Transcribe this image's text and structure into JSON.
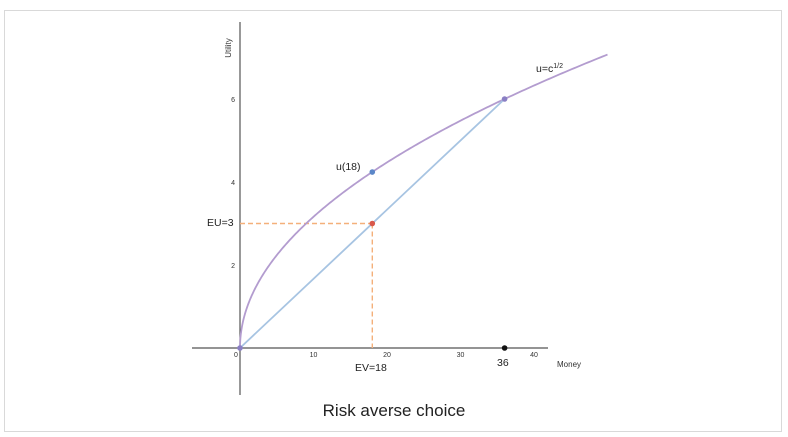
{
  "caption": "Risk averse choice",
  "chart_data": {
    "type": "line",
    "title": "",
    "xlabel": "Money",
    "ylabel": "Utility",
    "xlim": [
      0,
      50
    ],
    "ylim": [
      0,
      7.1
    ],
    "x_ticks": [
      0,
      10,
      20,
      30,
      40
    ],
    "x_tick_labels": [
      "0",
      "10",
      "20",
      "30",
      "40"
    ],
    "y_ticks": [
      2,
      4,
      6
    ],
    "y_tick_labels": [
      "2",
      "4",
      "6"
    ],
    "series": [
      {
        "name": "u=c",
        "name_sup": "1/2",
        "type": "function",
        "function": "sqrt",
        "x_range": [
          0,
          50
        ],
        "color": "#b39ccf"
      },
      {
        "type": "segment",
        "x": [
          0,
          36
        ],
        "y": [
          0,
          6
        ],
        "color": "#a7c4e2"
      }
    ],
    "points": [
      {
        "x": 0,
        "y": 0,
        "color": "#8a7fc4"
      },
      {
        "x": 36,
        "y": 6,
        "color": "#8a7fc4"
      },
      {
        "x": 18,
        "y": 4.24,
        "color": "#5b87c8",
        "label": "u(18)"
      },
      {
        "x": 18,
        "y": 3,
        "color": "#d9584a"
      },
      {
        "x": 36,
        "y": 0,
        "color": "#111111",
        "label": "36"
      }
    ],
    "guides": [
      {
        "from": [
          0,
          3
        ],
        "to": [
          18,
          3
        ],
        "color": "#f4b07a",
        "dashed": true
      },
      {
        "from": [
          18,
          3
        ],
        "to": [
          18,
          0
        ],
        "color": "#f4b07a",
        "dashed": true
      }
    ],
    "annotations": {
      "eu": "EU=3",
      "ev": "EV=18"
    },
    "grid": false,
    "legend": "none"
  }
}
